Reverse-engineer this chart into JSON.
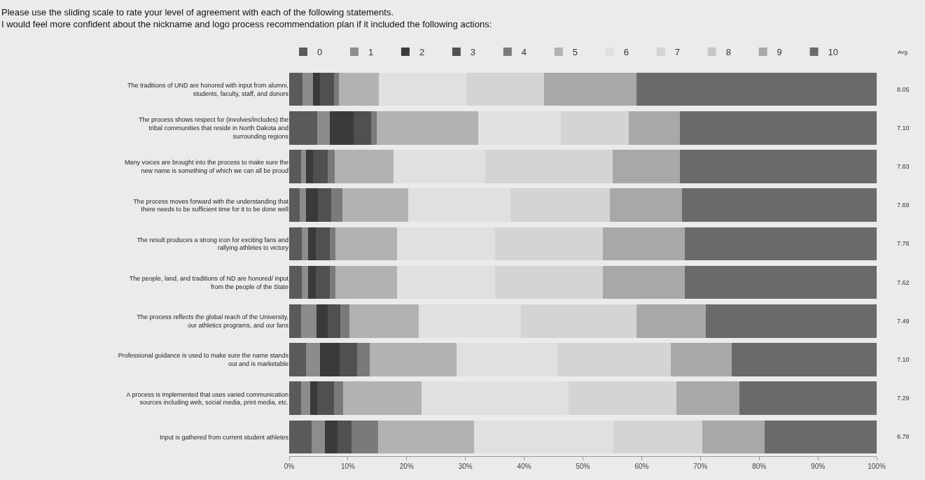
{
  "chart_data": {
    "type": "bar",
    "orientation": "horizontal",
    "stacked": true,
    "title": "Please use the sliding scale to rate your level of agreement with each of the following statements.",
    "subtitle": "I would feel more confident about the nickname and logo process recommendation plan if it included the following actions:",
    "categories": [
      "The traditions of UND are honored with input from alumni, students, faculty, staff, and donors",
      "The process shows respect for (involves/includes) the tribal communities that reside in North Dakota and surrounding regions",
      "Many voices are brought into the process to make sure the new name is something of which we can all be proud",
      "The process moves forward with the understanding that there needs to be sufficient time for it to be done well",
      "The result produces a strong icon for exciting fans and rallying athletes to victory",
      "The people, land, and traditions of ND are honored/ input from the people of the State",
      "The process reflects the global reach of the University, our athletics programs, and our fans",
      "Professional guidance is used to make sure the name stands out and is marketable",
      "A process is implemented that uses varied communication sources including web, social media, print media, etc.",
      "Input is gathered from current student athletes"
    ],
    "series": [
      {
        "name": "0",
        "color": "#5a5a5a",
        "values": [
          2.3,
          4.8,
          2.0,
          1.8,
          2.1,
          2.1,
          2.0,
          2.9,
          2.0,
          3.8
        ]
      },
      {
        "name": "1",
        "color": "#8c8c8c",
        "values": [
          1.7,
          2.1,
          0.9,
          1.1,
          1.1,
          1.1,
          2.7,
          2.4,
          1.6,
          2.3
        ]
      },
      {
        "name": "2",
        "color": "#3a3a3a",
        "values": [
          1.2,
          4.1,
          1.1,
          2.0,
          1.3,
          1.3,
          1.8,
          3.3,
          1.2,
          2.1
        ]
      },
      {
        "name": "3",
        "color": "#505050",
        "values": [
          2.4,
          2.9,
          2.6,
          2.2,
          2.4,
          2.4,
          2.2,
          3.0,
          2.8,
          2.4
        ]
      },
      {
        "name": "4",
        "color": "#7a7a7a",
        "values": [
          0.9,
          1.0,
          1.1,
          2.0,
          1.0,
          1.0,
          1.6,
          2.1,
          1.6,
          4.5
        ]
      },
      {
        "name": "5",
        "color": "#b2b2b2",
        "values": [
          6.8,
          17.3,
          10.0,
          11.2,
          10.4,
          10.4,
          11.7,
          14.8,
          13.3,
          16.4
        ]
      },
      {
        "name": "6",
        "color": "#e0e0e0",
        "values": [
          14.9,
          14.0,
          15.7,
          17.4,
          16.7,
          16.7,
          17.5,
          17.2,
          25.0,
          23.7
        ]
      },
      {
        "name": "7",
        "color": "#d4d4d4",
        "values": [
          13.2,
          11.6,
          21.7,
          16.9,
          18.4,
          18.4,
          19.6,
          19.3,
          18.4,
          15.1
        ]
      },
      {
        "name": "8",
        "color": "#c6c6c6",
        "values": [
          0,
          0,
          0,
          0,
          0,
          0,
          0,
          0,
          0,
          0
        ]
      },
      {
        "name": "9",
        "color": "#a8a8a8",
        "values": [
          15.7,
          8.7,
          11.4,
          12.3,
          14.0,
          14.0,
          11.8,
          10.3,
          10.7,
          10.6
        ]
      },
      {
        "name": "10",
        "color": "#6a6a6a",
        "values": [
          40.9,
          33.5,
          33.5,
          33.1,
          32.6,
          32.6,
          29.1,
          24.7,
          23.4,
          19.1
        ]
      }
    ],
    "xlim": [
      0,
      100
    ],
    "xticks": [
      {
        "value": 0,
        "label": "0%"
      },
      {
        "value": 10,
        "label": "10%"
      },
      {
        "value": 20,
        "label": "20%"
      },
      {
        "value": 30,
        "label": "30%"
      },
      {
        "value": 40,
        "label": "40%"
      },
      {
        "value": 50,
        "label": "50%"
      },
      {
        "value": 60,
        "label": "60%"
      },
      {
        "value": 70,
        "label": "70%"
      },
      {
        "value": 80,
        "label": "80%"
      },
      {
        "value": 90,
        "label": "90%"
      },
      {
        "value": 100,
        "label": "100%"
      }
    ],
    "annotations": [
      "Avg.",
      "8.05",
      "7.10",
      "7.83",
      "7.69",
      "7.78",
      "7.62",
      "7.49",
      "7.10",
      "7.29",
      "6.78"
    ],
    "grid": false,
    "legend": "top"
  }
}
